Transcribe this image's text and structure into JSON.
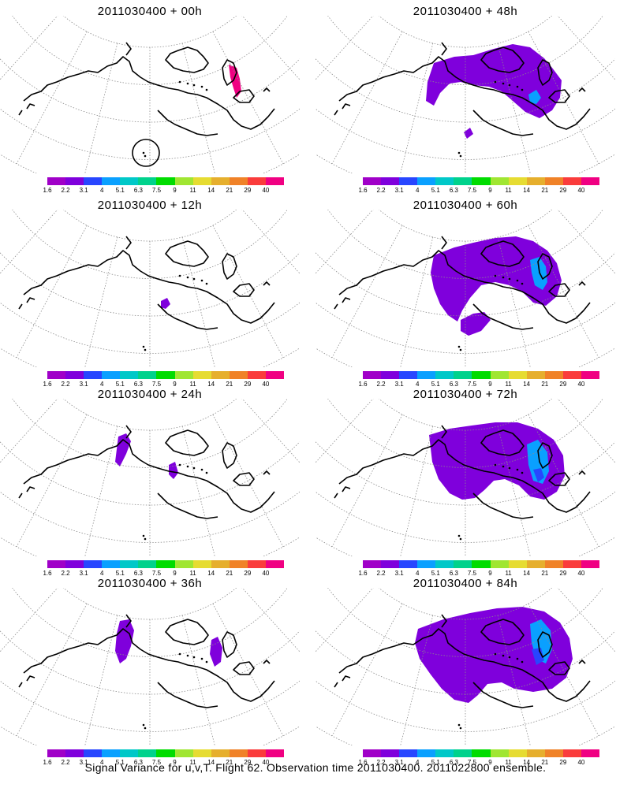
{
  "panels": [
    {
      "title": "2011030400 + 00h",
      "forecast_hour": 0
    },
    {
      "title": "2011030400 + 48h",
      "forecast_hour": 48
    },
    {
      "title": "2011030400 + 12h",
      "forecast_hour": 12
    },
    {
      "title": "2011030400 + 60h",
      "forecast_hour": 60
    },
    {
      "title": "2011030400 + 24h",
      "forecast_hour": 24
    },
    {
      "title": "2011030400 + 72h",
      "forecast_hour": 72
    },
    {
      "title": "2011030400 + 36h",
      "forecast_hour": 36
    },
    {
      "title": "2011030400 + 84h",
      "forecast_hour": 84
    }
  ],
  "colorbar": {
    "labels": [
      "1.6",
      "2.2",
      "3.1",
      "4",
      "5.1",
      "6.3",
      "7.5",
      "9",
      "11",
      "14",
      "21",
      "29",
      "40"
    ],
    "colors": [
      "#a000c8",
      "#7f00dc",
      "#2846ff",
      "#0aa0ff",
      "#00c8c8",
      "#00d28c",
      "#00dc00",
      "#a0e632",
      "#e6dc32",
      "#e6af2d",
      "#f08228",
      "#fa3c3c",
      "#f00082"
    ]
  },
  "caption": "Signal Variance for u,v,T. Flight 62. Observation time 2011030400. 2011022800 ensemble.",
  "colors": {
    "coast": "#000000",
    "grid": "#8c8c8c"
  }
}
